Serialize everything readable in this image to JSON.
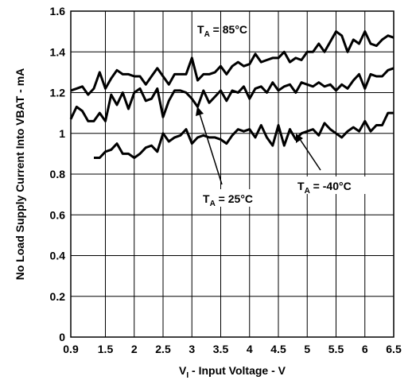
{
  "chart_data": {
    "type": "line",
    "xlabel": {
      "main": "V",
      "sub": "I",
      "rest": " - Input Voltage - V"
    },
    "ylabel": "No Load Supply Current Into VBAT - mA",
    "xlim": [
      0.9,
      6.5
    ],
    "ylim": [
      0,
      1.6
    ],
    "grid": true,
    "x_ticks": [
      "0.9",
      "1.5",
      "2",
      "2.5",
      "3",
      "3.5",
      "4",
      "4.5",
      "5",
      "5.5",
      "6",
      "6.5"
    ],
    "x_tick_values": [
      0.9,
      1.5,
      2,
      2.5,
      3,
      3.5,
      4,
      4.5,
      5,
      5.5,
      6,
      6.5
    ],
    "y_ticks": [
      "0",
      "0.2",
      "0.4",
      "0.6",
      "0.8",
      "1",
      "1.2",
      "1.4",
      "1.6"
    ],
    "y_tick_values": [
      0,
      0.2,
      0.4,
      0.6,
      0.8,
      1.0,
      1.2,
      1.4,
      1.6
    ],
    "annotations": [
      {
        "main": "T",
        "sub": "A",
        "rest": " = 85°C"
      },
      {
        "main": "T",
        "sub": "A",
        "rest": " = 25°C"
      },
      {
        "main": "T",
        "sub": "A",
        "rest": " = -40°C"
      }
    ],
    "series": [
      {
        "x": [
          0.9,
          1.0,
          1.1,
          1.2,
          1.3,
          1.4,
          1.5,
          1.6,
          1.7,
          1.8,
          1.9,
          2.0,
          2.1,
          2.2,
          2.3,
          2.4,
          2.5,
          2.6,
          2.7,
          2.8,
          2.9,
          3.0,
          3.1,
          3.2,
          3.3,
          3.4,
          3.5,
          3.6,
          3.7,
          3.8,
          3.9,
          4.0,
          4.1,
          4.2,
          4.3,
          4.4,
          4.5,
          4.6,
          4.7,
          4.8,
          4.9,
          5.0,
          5.1,
          5.2,
          5.3,
          5.4,
          5.5,
          5.6,
          5.7,
          5.8,
          5.9,
          6.0,
          6.1,
          6.2,
          6.3,
          6.4,
          6.5
        ],
        "values": [
          1.21,
          1.22,
          1.23,
          1.19,
          1.22,
          1.3,
          1.22,
          1.27,
          1.31,
          1.29,
          1.29,
          1.28,
          1.28,
          1.24,
          1.28,
          1.32,
          1.28,
          1.24,
          1.29,
          1.29,
          1.29,
          1.37,
          1.26,
          1.29,
          1.29,
          1.3,
          1.33,
          1.29,
          1.33,
          1.35,
          1.33,
          1.34,
          1.39,
          1.35,
          1.36,
          1.37,
          1.37,
          1.4,
          1.35,
          1.37,
          1.36,
          1.4,
          1.4,
          1.44,
          1.4,
          1.45,
          1.5,
          1.48,
          1.4,
          1.46,
          1.44,
          1.5,
          1.44,
          1.43,
          1.46,
          1.48,
          1.47
        ]
      },
      {
        "x": [
          0.9,
          1.0,
          1.1,
          1.2,
          1.3,
          1.4,
          1.5,
          1.6,
          1.7,
          1.8,
          1.9,
          2.0,
          2.1,
          2.2,
          2.3,
          2.4,
          2.5,
          2.6,
          2.7,
          2.8,
          2.9,
          3.0,
          3.1,
          3.2,
          3.3,
          3.4,
          3.5,
          3.6,
          3.7,
          3.8,
          3.9,
          4.0,
          4.1,
          4.2,
          4.3,
          4.4,
          4.5,
          4.6,
          4.7,
          4.8,
          4.9,
          5.0,
          5.1,
          5.2,
          5.3,
          5.4,
          5.5,
          5.6,
          5.7,
          5.8,
          5.9,
          6.0,
          6.1,
          6.2,
          6.3,
          6.4,
          6.5
        ],
        "values": [
          1.07,
          1.13,
          1.11,
          1.06,
          1.06,
          1.1,
          1.06,
          1.19,
          1.14,
          1.2,
          1.12,
          1.2,
          1.22,
          1.16,
          1.17,
          1.22,
          1.08,
          1.16,
          1.21,
          1.21,
          1.2,
          1.17,
          1.13,
          1.21,
          1.15,
          1.18,
          1.21,
          1.16,
          1.21,
          1.2,
          1.23,
          1.17,
          1.22,
          1.23,
          1.2,
          1.25,
          1.21,
          1.23,
          1.24,
          1.2,
          1.25,
          1.24,
          1.23,
          1.25,
          1.23,
          1.24,
          1.21,
          1.24,
          1.22,
          1.26,
          1.29,
          1.22,
          1.29,
          1.28,
          1.28,
          1.31,
          1.32
        ]
      },
      {
        "x": [
          1.3,
          1.4,
          1.5,
          1.6,
          1.7,
          1.8,
          1.9,
          2.0,
          2.1,
          2.2,
          2.3,
          2.4,
          2.5,
          2.6,
          2.7,
          2.8,
          2.9,
          3.0,
          3.1,
          3.2,
          3.3,
          3.4,
          3.5,
          3.6,
          3.7,
          3.8,
          3.9,
          4.0,
          4.1,
          4.2,
          4.3,
          4.4,
          4.5,
          4.6,
          4.7,
          4.8,
          4.9,
          5.0,
          5.1,
          5.2,
          5.3,
          5.4,
          5.5,
          5.6,
          5.7,
          5.8,
          5.9,
          6.0,
          6.1,
          6.2,
          6.3,
          6.4,
          6.5
        ],
        "values": [
          0.88,
          0.88,
          0.91,
          0.92,
          0.95,
          0.9,
          0.9,
          0.88,
          0.9,
          0.93,
          0.94,
          0.91,
          1.0,
          0.96,
          0.98,
          0.99,
          1.02,
          0.95,
          0.98,
          0.99,
          0.98,
          0.98,
          0.97,
          0.95,
          0.99,
          1.02,
          1.01,
          1.02,
          0.98,
          1.04,
          0.98,
          0.94,
          1.04,
          0.94,
          1.02,
          0.97,
          1.0,
          1.01,
          1.02,
          0.99,
          1.05,
          1.02,
          1.0,
          0.98,
          1.01,
          1.03,
          1.01,
          1.06,
          1.01,
          1.04,
          1.04,
          1.1,
          1.1
        ]
      }
    ]
  }
}
